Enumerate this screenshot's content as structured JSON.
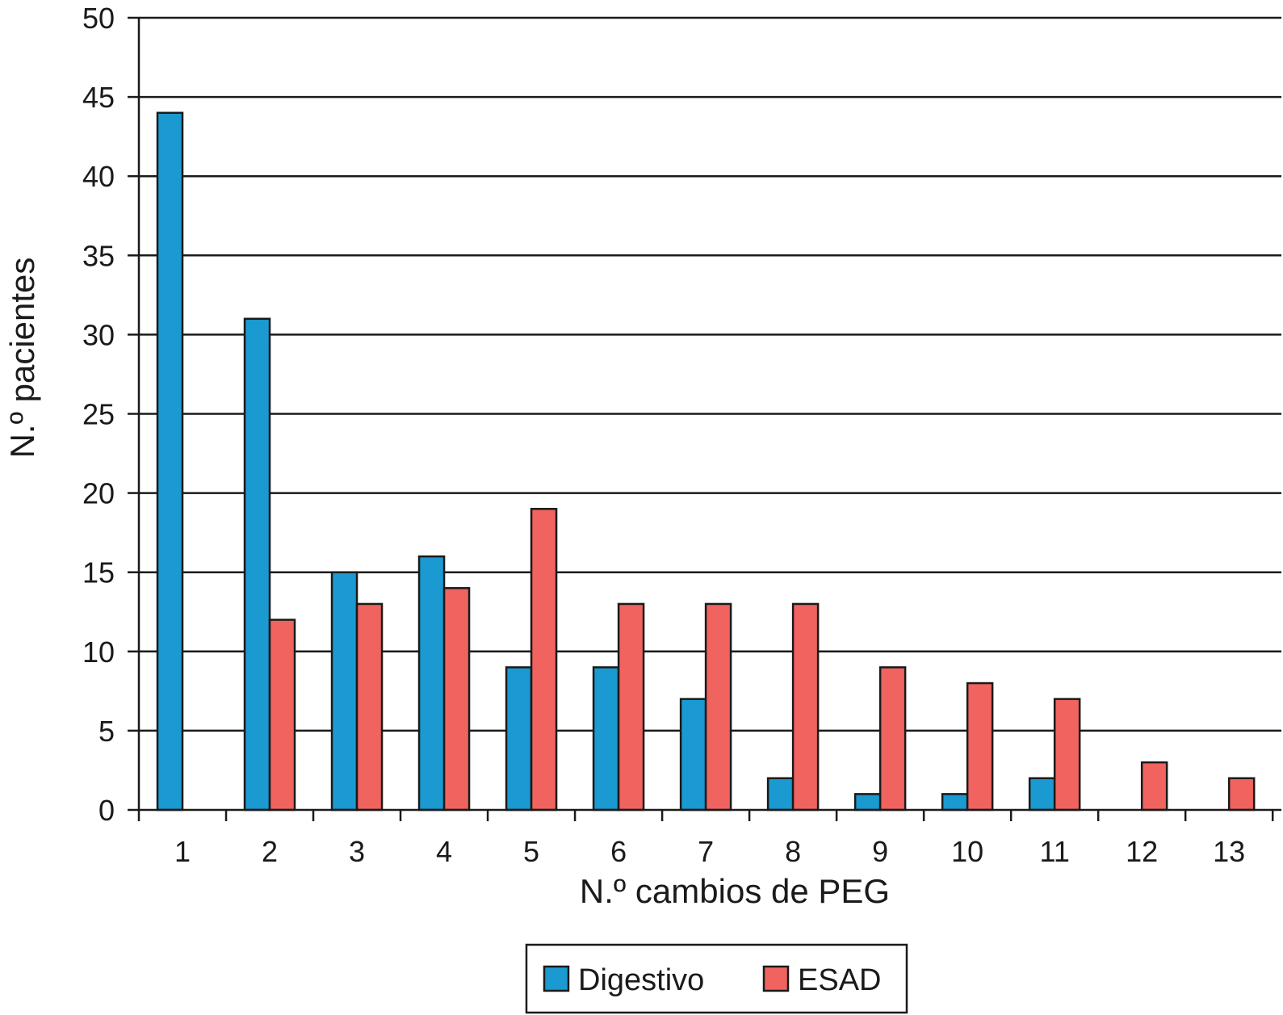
{
  "chart_data": {
    "type": "bar",
    "categories": [
      "1",
      "2",
      "3",
      "4",
      "5",
      "6",
      "7",
      "8",
      "9",
      "10",
      "11",
      "12",
      "13"
    ],
    "series": [
      {
        "name": "Digestivo",
        "color": "#1a9ad0",
        "values": [
          44,
          31,
          15,
          16,
          9,
          9,
          7,
          2,
          1,
          1,
          2,
          0,
          0
        ]
      },
      {
        "name": "ESAD",
        "color": "#f0635f",
        "values": [
          0,
          12,
          13,
          14,
          19,
          13,
          13,
          13,
          9,
          8,
          7,
          3,
          2
        ]
      }
    ],
    "title": "",
    "xlabel": "N.º cambios de PEG",
    "ylabel": "N.º pacientes",
    "ylim": [
      0,
      50
    ],
    "yticks": [
      0,
      5,
      10,
      15,
      20,
      25,
      30,
      35,
      40,
      45,
      50
    ],
    "grid": true,
    "legend_position": "bottom-center"
  }
}
